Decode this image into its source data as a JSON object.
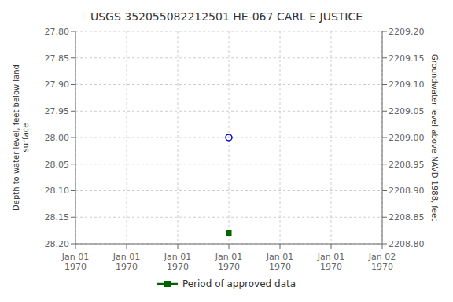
{
  "chart_data": {
    "type": "scatter",
    "title": "USGS 352055082212501 HE-067 CARL E JUSTICE",
    "categories": [
      "Jan 01\n1970",
      "Jan 01\n1970",
      "Jan 01\n1970",
      "Jan 01\n1970",
      "Jan 01\n1970",
      "Jan 01\n1970",
      "Jan 02\n1970"
    ],
    "series": [
      {
        "color": "#0000cc",
        "marker": "circle",
        "values": [
          null,
          null,
          null,
          28.0,
          null,
          null,
          null
        ]
      },
      {
        "name": "Period of approved data",
        "color": "#006400",
        "marker": "square",
        "values": [
          null,
          null,
          null,
          28.18,
          null,
          null,
          null
        ]
      }
    ],
    "ylabel": "Depth to water level, feet below land\nsurface",
    "y2label": "Groundwater level above NAVD 1988, feet",
    "ylim": [
      28.2,
      27.8
    ],
    "yticks": [
      {
        "value": 27.8,
        "label": "27.80"
      },
      {
        "value": 27.85,
        "label": "27.85"
      },
      {
        "value": 27.9,
        "label": "27.90"
      },
      {
        "value": 27.95,
        "label": "27.95"
      },
      {
        "value": 28.0,
        "label": "28.00"
      },
      {
        "value": 28.05,
        "label": "28.05"
      },
      {
        "value": 28.1,
        "label": "28.10"
      },
      {
        "value": 28.15,
        "label": "28.15"
      },
      {
        "value": 28.2,
        "label": "28.20"
      }
    ],
    "y2lim": [
      2208.8,
      2209.2
    ],
    "y2ticks": [
      {
        "value": 2209.2,
        "label": "2209.20"
      },
      {
        "value": 2209.15,
        "label": "2209.15"
      },
      {
        "value": 2209.1,
        "label": "2209.10"
      },
      {
        "value": 2209.05,
        "label": "2209.05"
      },
      {
        "value": 2209.0,
        "label": "2209.00"
      },
      {
        "value": 2208.95,
        "label": "2208.95"
      },
      {
        "value": 2208.9,
        "label": "2208.90"
      },
      {
        "value": 2208.85,
        "label": "2208.85"
      },
      {
        "value": 2208.8,
        "label": "2208.80"
      }
    ],
    "grid": true,
    "legend": "bottom"
  }
}
